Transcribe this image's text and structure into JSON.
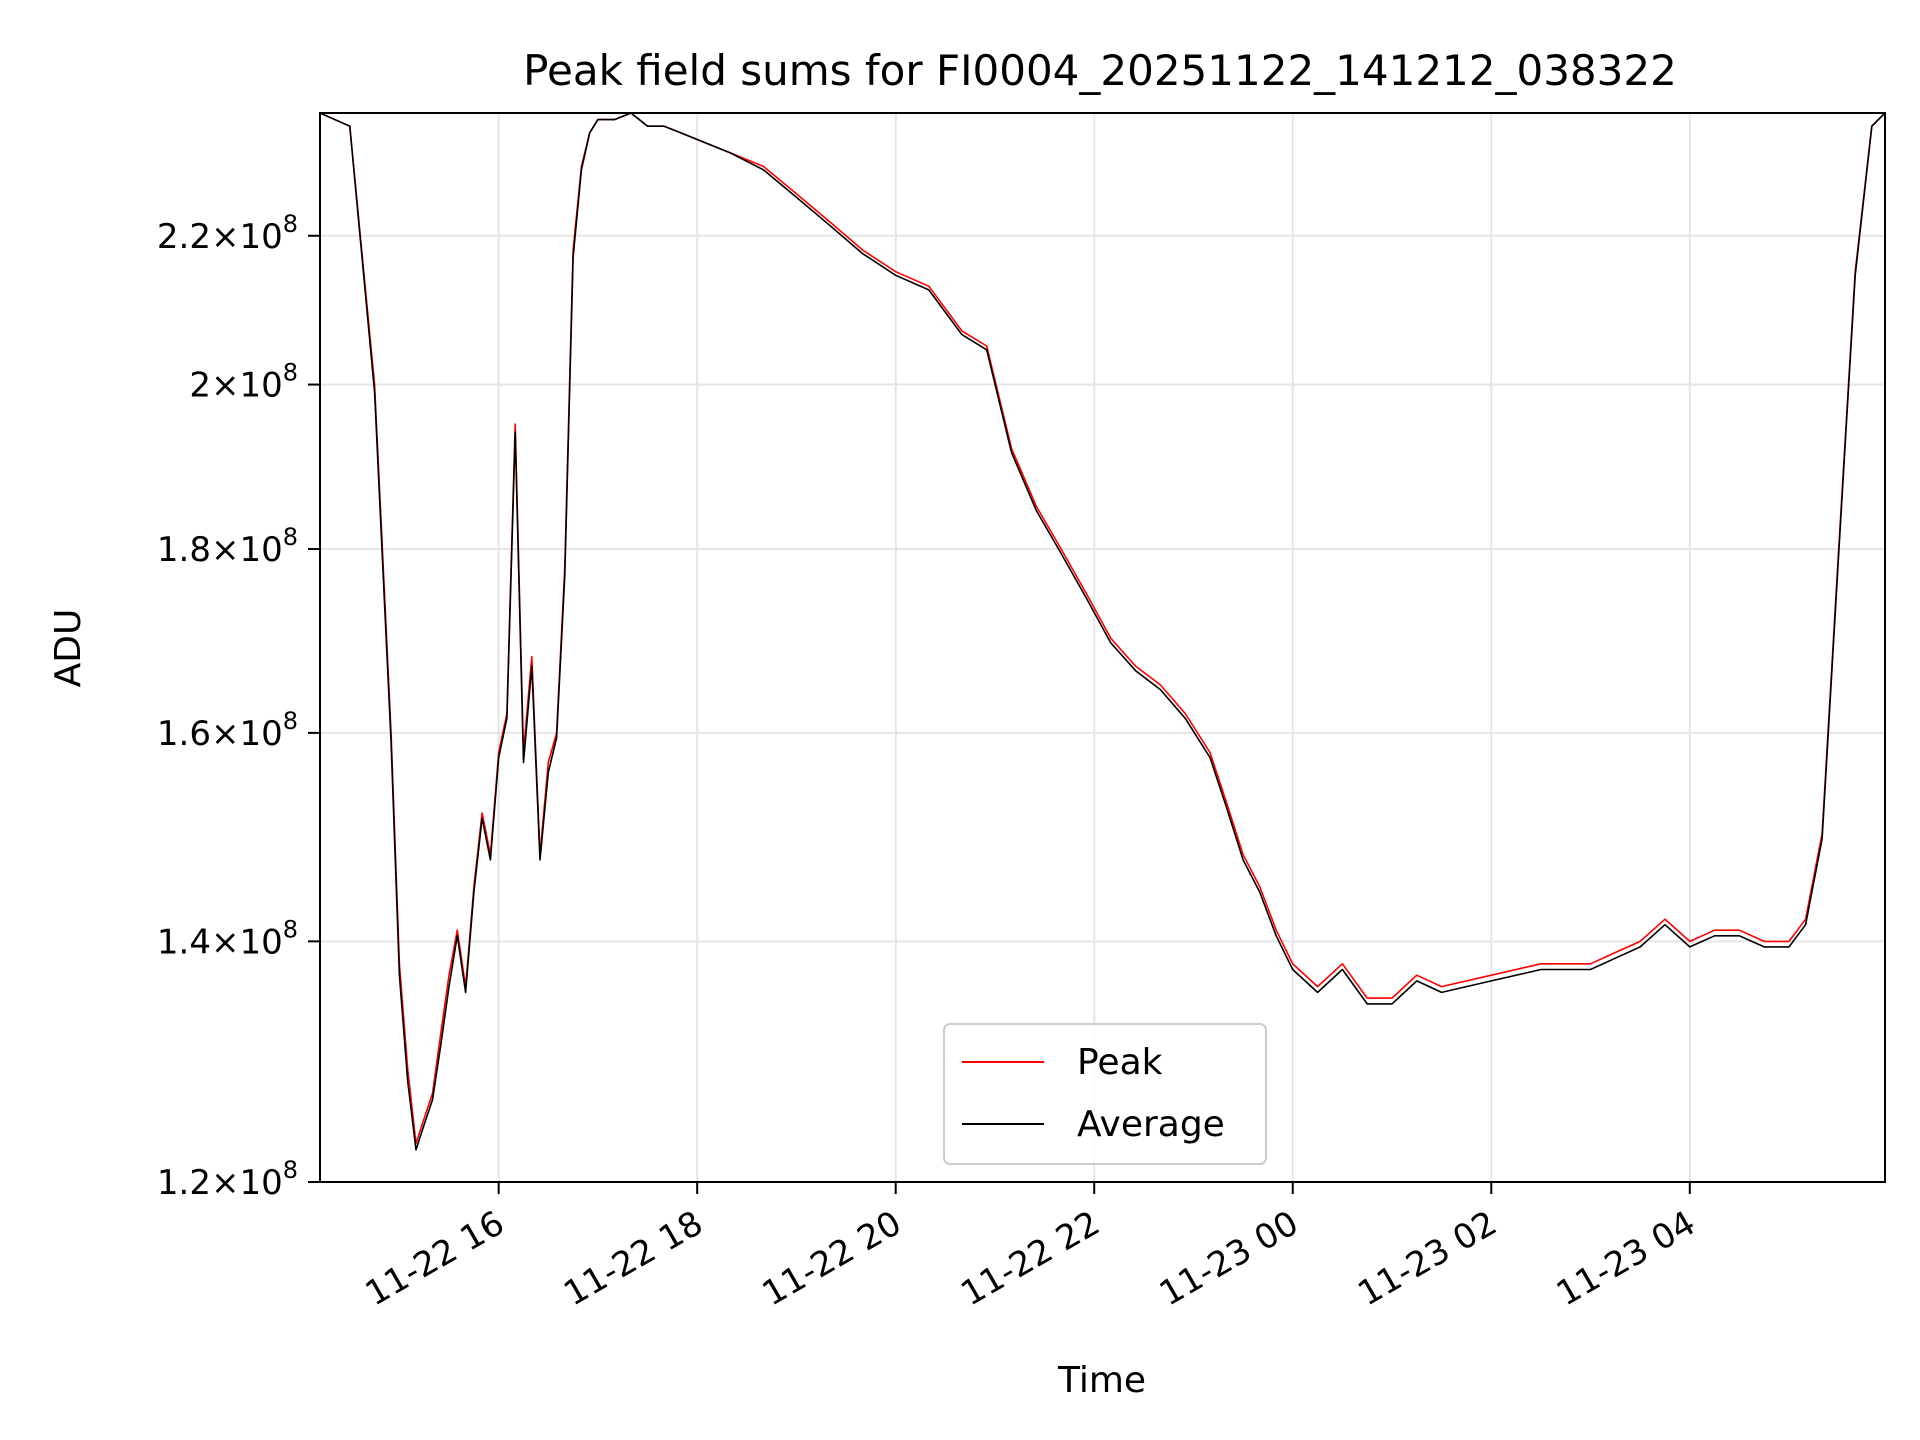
{
  "chart_data": {
    "type": "line",
    "title": "Peak field sums for FI0004_20251122_141212_038322",
    "xlabel": "Time",
    "ylabel": "ADU",
    "y_scale": "log",
    "ylim": [
      120000000,
      238000000
    ],
    "xlim": [
      "2025-11-22 14:12",
      "2025-11-23 05:58"
    ],
    "grid": true,
    "legend_position": "lower center",
    "x_ticks": [
      {
        "value": "2025-11-22 16:00",
        "label": "11-22 16"
      },
      {
        "value": "2025-11-22 18:00",
        "label": "11-22 18"
      },
      {
        "value": "2025-11-22 20:00",
        "label": "11-22 20"
      },
      {
        "value": "2025-11-22 22:00",
        "label": "11-22 22"
      },
      {
        "value": "2025-11-23 00:00",
        "label": "11-23 00"
      },
      {
        "value": "2025-11-23 02:00",
        "label": "11-23 02"
      },
      {
        "value": "2025-11-23 04:00",
        "label": "11-23 04"
      }
    ],
    "y_ticks": [
      {
        "value": 120000000,
        "mantissa": "1.2",
        "base": "10",
        "exp": "8"
      },
      {
        "value": 140000000,
        "mantissa": "1.4",
        "base": "10",
        "exp": "8"
      },
      {
        "value": 160000000,
        "mantissa": "1.6",
        "base": "10",
        "exp": "8"
      },
      {
        "value": 180000000,
        "mantissa": "1.8",
        "base": "10",
        "exp": "8"
      },
      {
        "value": 200000000,
        "mantissa": "2",
        "base": "10",
        "exp": "8"
      },
      {
        "value": 220000000,
        "mantissa": "2.2",
        "base": "10",
        "exp": "8"
      }
    ],
    "x": [
      "2025-11-22 14:12",
      "2025-11-22 14:30",
      "2025-11-22 14:45",
      "2025-11-22 14:55",
      "2025-11-22 15:00",
      "2025-11-22 15:05",
      "2025-11-22 15:10",
      "2025-11-22 15:15",
      "2025-11-22 15:20",
      "2025-11-22 15:25",
      "2025-11-22 15:30",
      "2025-11-22 15:35",
      "2025-11-22 15:40",
      "2025-11-22 15:45",
      "2025-11-22 15:50",
      "2025-11-22 15:55",
      "2025-11-22 16:00",
      "2025-11-22 16:05",
      "2025-11-22 16:10",
      "2025-11-22 16:15",
      "2025-11-22 16:20",
      "2025-11-22 16:25",
      "2025-11-22 16:30",
      "2025-11-22 16:35",
      "2025-11-22 16:40",
      "2025-11-22 16:45",
      "2025-11-22 16:50",
      "2025-11-22 16:55",
      "2025-11-22 17:00",
      "2025-11-22 17:10",
      "2025-11-22 17:20",
      "2025-11-22 17:30",
      "2025-11-22 17:40",
      "2025-11-22 17:50",
      "2025-11-22 18:00",
      "2025-11-22 18:20",
      "2025-11-22 18:40",
      "2025-11-22 19:00",
      "2025-11-22 19:20",
      "2025-11-22 19:40",
      "2025-11-22 20:00",
      "2025-11-22 20:20",
      "2025-11-22 20:40",
      "2025-11-22 20:55",
      "2025-11-22 21:10",
      "2025-11-22 21:25",
      "2025-11-22 21:40",
      "2025-11-22 21:55",
      "2025-11-22 22:10",
      "2025-11-22 22:25",
      "2025-11-22 22:40",
      "2025-11-22 22:55",
      "2025-11-22 23:10",
      "2025-11-22 23:20",
      "2025-11-22 23:30",
      "2025-11-22 23:40",
      "2025-11-22 23:50",
      "2025-11-23 00:00",
      "2025-11-23 00:15",
      "2025-11-23 00:30",
      "2025-11-23 00:45",
      "2025-11-23 01:00",
      "2025-11-23 01:15",
      "2025-11-23 01:30",
      "2025-11-23 02:00",
      "2025-11-23 02:30",
      "2025-11-23 03:00",
      "2025-11-23 03:15",
      "2025-11-23 03:30",
      "2025-11-23 03:45",
      "2025-11-23 04:00",
      "2025-11-23 04:15",
      "2025-11-23 04:30",
      "2025-11-23 04:45",
      "2025-11-23 05:00",
      "2025-11-23 05:10",
      "2025-11-23 05:20",
      "2025-11-23 05:30",
      "2025-11-23 05:40",
      "2025-11-23 05:50",
      "2025-11-23 05:58"
    ],
    "series": [
      {
        "name": "Peak",
        "color": "#ff0000",
        "values": [
          238000000,
          236000000,
          200000000,
          160000000,
          138000000,
          129000000,
          123000000,
          125000000,
          127000000,
          132000000,
          137000000,
          141000000,
          136000000,
          145000000,
          152000000,
          148000000,
          158000000,
          162000000,
          195000000,
          158000000,
          168000000,
          148000000,
          157000000,
          160000000,
          178000000,
          218000000,
          230000000,
          235000000,
          237000000,
          237000000,
          238000000,
          236000000,
          236000000,
          235000000,
          234000000,
          232000000,
          230000000,
          226000000,
          222000000,
          218000000,
          215000000,
          213000000,
          207000000,
          205000000,
          192000000,
          185000000,
          180000000,
          175000000,
          170000000,
          167000000,
          165000000,
          162000000,
          158000000,
          153000000,
          148000000,
          145000000,
          141000000,
          138000000,
          136000000,
          138000000,
          135000000,
          135000000,
          137000000,
          136000000,
          137000000,
          138000000,
          138000000,
          139000000,
          140000000,
          142000000,
          140000000,
          141000000,
          141000000,
          140000000,
          140000000,
          142000000,
          150000000,
          180000000,
          215000000,
          236000000,
          238000000
        ]
      },
      {
        "name": "Average",
        "color": "#000000",
        "values": [
          238000000,
          236000000,
          199000000,
          159000000,
          137000000,
          128000000,
          122500000,
          124500000,
          126500000,
          131000000,
          136000000,
          140500000,
          135500000,
          144500000,
          151500000,
          147500000,
          157500000,
          161500000,
          194000000,
          157000000,
          167000000,
          147500000,
          156000000,
          159500000,
          177000000,
          217000000,
          229500000,
          235000000,
          237000000,
          237000000,
          238000000,
          236000000,
          236000000,
          235000000,
          234000000,
          232000000,
          229500000,
          225500000,
          221500000,
          217500000,
          214500000,
          212500000,
          206500000,
          204500000,
          191500000,
          184500000,
          179500000,
          174500000,
          169500000,
          166500000,
          164500000,
          161500000,
          157500000,
          152500000,
          147500000,
          144500000,
          140500000,
          137500000,
          135500000,
          137500000,
          134500000,
          134500000,
          136500000,
          135500000,
          136500000,
          137500000,
          137500000,
          138500000,
          139500000,
          141500000,
          139500000,
          140500000,
          140500000,
          139500000,
          139500000,
          141500000,
          149500000,
          179500000,
          214500000,
          236000000,
          238000000
        ]
      }
    ]
  }
}
